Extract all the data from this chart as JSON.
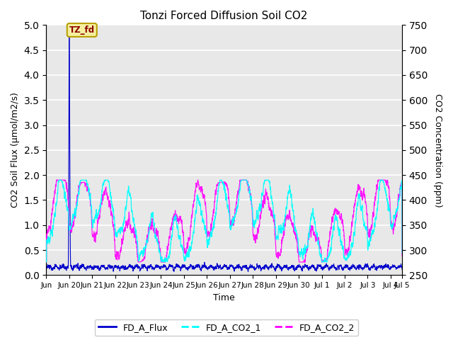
{
  "title": "Tonzi Forced Diffusion Soil CO2",
  "ylabel_left": "CO2 Soil Flux (μmol/m2/s)",
  "ylabel_right": "CO2 Concentration (ppm)",
  "xlabel": "Time",
  "ylim_left": [
    0.0,
    5.0
  ],
  "ylim_right": [
    250,
    750
  ],
  "left_yticks": [
    0.0,
    0.5,
    1.0,
    1.5,
    2.0,
    2.5,
    3.0,
    3.5,
    4.0,
    4.5,
    5.0
  ],
  "right_yticks": [
    250,
    300,
    350,
    400,
    450,
    500,
    550,
    600,
    650,
    700,
    750
  ],
  "color_flux": "#0000cc",
  "color_co2_1": "#00ffff",
  "color_co2_2": "#ff00ff",
  "label_flux": "FD_A_Flux",
  "label_co2_1": "FD_A_CO2_1",
  "label_co2_2": "FD_A_CO2_2",
  "annotation_text": "TZ_fd",
  "bg_color": "#e8e8e8",
  "grid_color": "white",
  "n_days": 15.5,
  "spike_value": 4.8
}
